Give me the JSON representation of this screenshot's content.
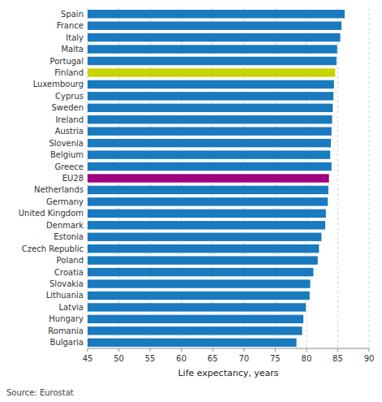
{
  "chart_data": {
    "type": "bar",
    "orientation": "horizontal",
    "categories": [
      "Spain",
      "France",
      "Italy",
      "Malta",
      "Portugal",
      "Finland",
      "Luxembourg",
      "Cyprus",
      "Sweden",
      "Ireland",
      "Austria",
      "Slovenia",
      "Belgium",
      "Greece",
      "EU28",
      "Netherlands",
      "Germany",
      "United Kingdom",
      "Denmark",
      "Estonia",
      "Czech Republic",
      "Poland",
      "Croatia",
      "Slovakia",
      "Lithuania",
      "Latvia",
      "Hungary",
      "Romania",
      "Bulgaria"
    ],
    "values": [
      86.1,
      85.6,
      85.4,
      84.9,
      84.8,
      84.6,
      84.4,
      84.3,
      84.2,
      84.1,
      84.0,
      83.9,
      83.8,
      84.0,
      83.6,
      83.5,
      83.4,
      83.1,
      83.0,
      82.4,
      82.0,
      81.8,
      81.1,
      80.6,
      80.5,
      79.9,
      79.5,
      79.3,
      78.4
    ],
    "colors": [
      "#1a7abf",
      "#1a7abf",
      "#1a7abf",
      "#1a7abf",
      "#1a7abf",
      "#c8d400",
      "#1a7abf",
      "#1a7abf",
      "#1a7abf",
      "#1a7abf",
      "#1a7abf",
      "#1a7abf",
      "#1a7abf",
      "#1a7abf",
      "#a0007e",
      "#1a7abf",
      "#1a7abf",
      "#1a7abf",
      "#1a7abf",
      "#1a7abf",
      "#1a7abf",
      "#1a7abf",
      "#1a7abf",
      "#1a7abf",
      "#1a7abf",
      "#1a7abf",
      "#1a7abf",
      "#1a7abf",
      "#1a7abf"
    ],
    "xlabel": "Life expectancy, years",
    "annotations": [
      "Source: Eurostat"
    ],
    "xlim": [
      45,
      90
    ],
    "xticks": [
      45,
      50,
      55,
      60,
      65,
      70,
      75,
      80,
      85,
      90
    ],
    "grid": true
  }
}
